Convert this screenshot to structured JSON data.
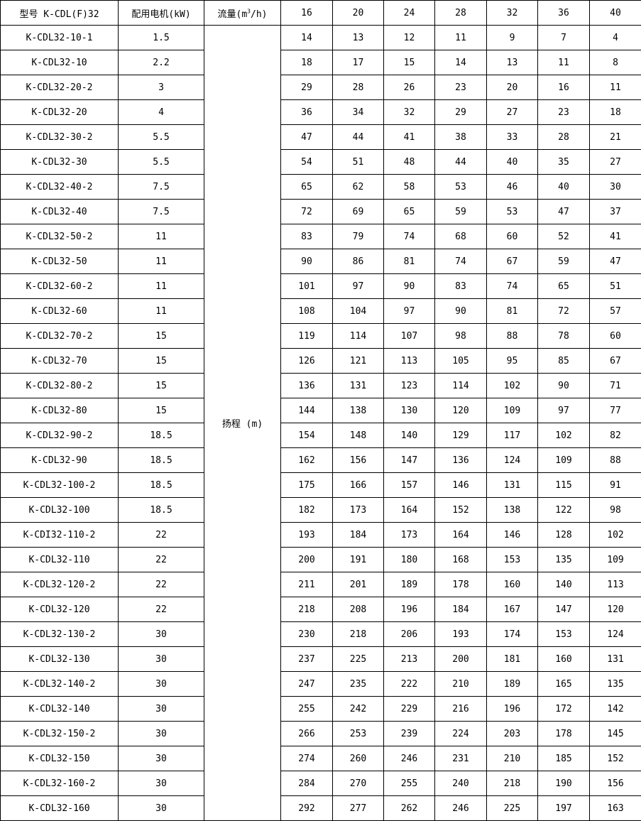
{
  "header": {
    "model": "型号 K-CDL(F)32",
    "motor": "配用电机(kW)",
    "flow_prefix": "流量(m",
    "flow_sup": "3",
    "flow_suffix": "/h)",
    "flows": [
      "16",
      "20",
      "24",
      "28",
      "32",
      "36",
      "40"
    ]
  },
  "head_label": "扬程 (m)",
  "rows": [
    {
      "model": "K-CDL32-10-1",
      "kw": "1.5",
      "h": [
        "14",
        "13",
        "12",
        "11",
        "9",
        "7",
        "4"
      ]
    },
    {
      "model": "K-CDL32-10",
      "kw": "2.2",
      "h": [
        "18",
        "17",
        "15",
        "14",
        "13",
        "11",
        "8"
      ]
    },
    {
      "model": "K-CDL32-20-2",
      "kw": "3",
      "h": [
        "29",
        "28",
        "26",
        "23",
        "20",
        "16",
        "11"
      ]
    },
    {
      "model": "K-CDL32-20",
      "kw": "4",
      "h": [
        "36",
        "34",
        "32",
        "29",
        "27",
        "23",
        "18"
      ]
    },
    {
      "model": "K-CDL32-30-2",
      "kw": "5.5",
      "h": [
        "47",
        "44",
        "41",
        "38",
        "33",
        "28",
        "21"
      ]
    },
    {
      "model": "K-CDL32-30",
      "kw": "5.5",
      "h": [
        "54",
        "51",
        "48",
        "44",
        "40",
        "35",
        "27"
      ]
    },
    {
      "model": "K-CDL32-40-2",
      "kw": "7.5",
      "h": [
        "65",
        "62",
        "58",
        "53",
        "46",
        "40",
        "30"
      ]
    },
    {
      "model": "K-CDL32-40",
      "kw": "7.5",
      "h": [
        "72",
        "69",
        "65",
        "59",
        "53",
        "47",
        "37"
      ]
    },
    {
      "model": "K-CDL32-50-2",
      "kw": "11",
      "h": [
        "83",
        "79",
        "74",
        "68",
        "60",
        "52",
        "41"
      ]
    },
    {
      "model": "K-CDL32-50",
      "kw": "11",
      "h": [
        "90",
        "86",
        "81",
        "74",
        "67",
        "59",
        "47"
      ]
    },
    {
      "model": "K-CDL32-60-2",
      "kw": "11",
      "h": [
        "101",
        "97",
        "90",
        "83",
        "74",
        "65",
        "51"
      ]
    },
    {
      "model": "K-CDL32-60",
      "kw": "11",
      "h": [
        "108",
        "104",
        "97",
        "90",
        "81",
        "72",
        "57"
      ]
    },
    {
      "model": "K-CDL32-70-2",
      "kw": "15",
      "h": [
        "119",
        "114",
        "107",
        "98",
        "88",
        "78",
        "60"
      ]
    },
    {
      "model": "K-CDL32-70",
      "kw": "15",
      "h": [
        "126",
        "121",
        "113",
        "105",
        "95",
        "85",
        "67"
      ]
    },
    {
      "model": "K-CDL32-80-2",
      "kw": "15",
      "h": [
        "136",
        "131",
        "123",
        "114",
        "102",
        "90",
        "71"
      ]
    },
    {
      "model": "K-CDL32-80",
      "kw": "15",
      "h": [
        "144",
        "138",
        "130",
        "120",
        "109",
        "97",
        "77"
      ]
    },
    {
      "model": "K-CDL32-90-2",
      "kw": "18.5",
      "h": [
        "154",
        "148",
        "140",
        "129",
        "117",
        "102",
        "82"
      ]
    },
    {
      "model": "K-CDL32-90",
      "kw": "18.5",
      "h": [
        "162",
        "156",
        "147",
        "136",
        "124",
        "109",
        "88"
      ]
    },
    {
      "model": "K-CDL32-100-2",
      "kw": "18.5",
      "h": [
        "175",
        "166",
        "157",
        "146",
        "131",
        "115",
        "91"
      ]
    },
    {
      "model": "K-CDL32-100",
      "kw": "18.5",
      "h": [
        "182",
        "173",
        "164",
        "152",
        "138",
        "122",
        "98"
      ]
    },
    {
      "model": "K-CDI32-110-2",
      "kw": "22",
      "h": [
        "193",
        "184",
        "173",
        "164",
        "146",
        "128",
        "102"
      ]
    },
    {
      "model": "K-CDL32-110",
      "kw": "22",
      "h": [
        "200",
        "191",
        "180",
        "168",
        "153",
        "135",
        "109"
      ]
    },
    {
      "model": "K-CDL32-120-2",
      "kw": "22",
      "h": [
        "211",
        "201",
        "189",
        "178",
        "160",
        "140",
        "113"
      ]
    },
    {
      "model": "K-CDL32-120",
      "kw": "22",
      "h": [
        "218",
        "208",
        "196",
        "184",
        "167",
        "147",
        "120"
      ]
    },
    {
      "model": "K-CDL32-130-2",
      "kw": "30",
      "h": [
        "230",
        "218",
        "206",
        "193",
        "174",
        "153",
        "124"
      ]
    },
    {
      "model": "K-CDL32-130",
      "kw": "30",
      "h": [
        "237",
        "225",
        "213",
        "200",
        "181",
        "160",
        "131"
      ]
    },
    {
      "model": "K-CDL32-140-2",
      "kw": "30",
      "h": [
        "247",
        "235",
        "222",
        "210",
        "189",
        "165",
        "135"
      ]
    },
    {
      "model": "K-CDL32-140",
      "kw": "30",
      "h": [
        "255",
        "242",
        "229",
        "216",
        "196",
        "172",
        "142"
      ]
    },
    {
      "model": "K-CDL32-150-2",
      "kw": "30",
      "h": [
        "266",
        "253",
        "239",
        "224",
        "203",
        "178",
        "145"
      ]
    },
    {
      "model": "K-CDL32-150",
      "kw": "30",
      "h": [
        "274",
        "260",
        "246",
        "231",
        "210",
        "185",
        "152"
      ]
    },
    {
      "model": "K-CDL32-160-2",
      "kw": "30",
      "h": [
        "284",
        "270",
        "255",
        "240",
        "218",
        "190",
        "156"
      ]
    },
    {
      "model": "K-CDL32-160",
      "kw": "30",
      "h": [
        "292",
        "277",
        "262",
        "246",
        "225",
        "197",
        "163"
      ]
    }
  ]
}
